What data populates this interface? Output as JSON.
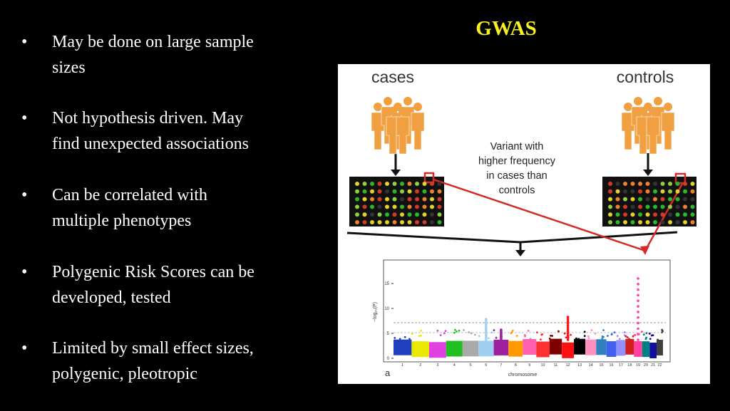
{
  "title": "GWAS",
  "bullets": [
    [
      "May be done on large sample",
      "sizes"
    ],
    [
      "Not hypothesis driven. May",
      "find unexpected associations"
    ],
    [
      "Can be correlated with",
      "multiple phenotypes"
    ],
    [
      "Polygenic Risk Scores can be",
      "developed, tested"
    ],
    [
      "Limited by small effect sizes,",
      "polygenic, pleotropic"
    ]
  ],
  "figure": {
    "cases": "cases",
    "controls": "controls",
    "variant_note": [
      "Variant with",
      "higher frequency",
      "in cases than",
      "controls"
    ],
    "plot": {
      "y_label": "−log₁₀(P)",
      "y_ticks": [
        "0",
        "5",
        "10",
        "15"
      ],
      "x_label": "chromosome",
      "chromosomes": [
        "1",
        "2",
        "3",
        "4",
        "5",
        "6",
        "7",
        "8",
        "9",
        "10",
        "11",
        "12",
        "13",
        "14",
        "15",
        "16",
        "17",
        "18",
        "19",
        "20",
        "21",
        "22"
      ],
      "panel_label": "a"
    }
  }
}
